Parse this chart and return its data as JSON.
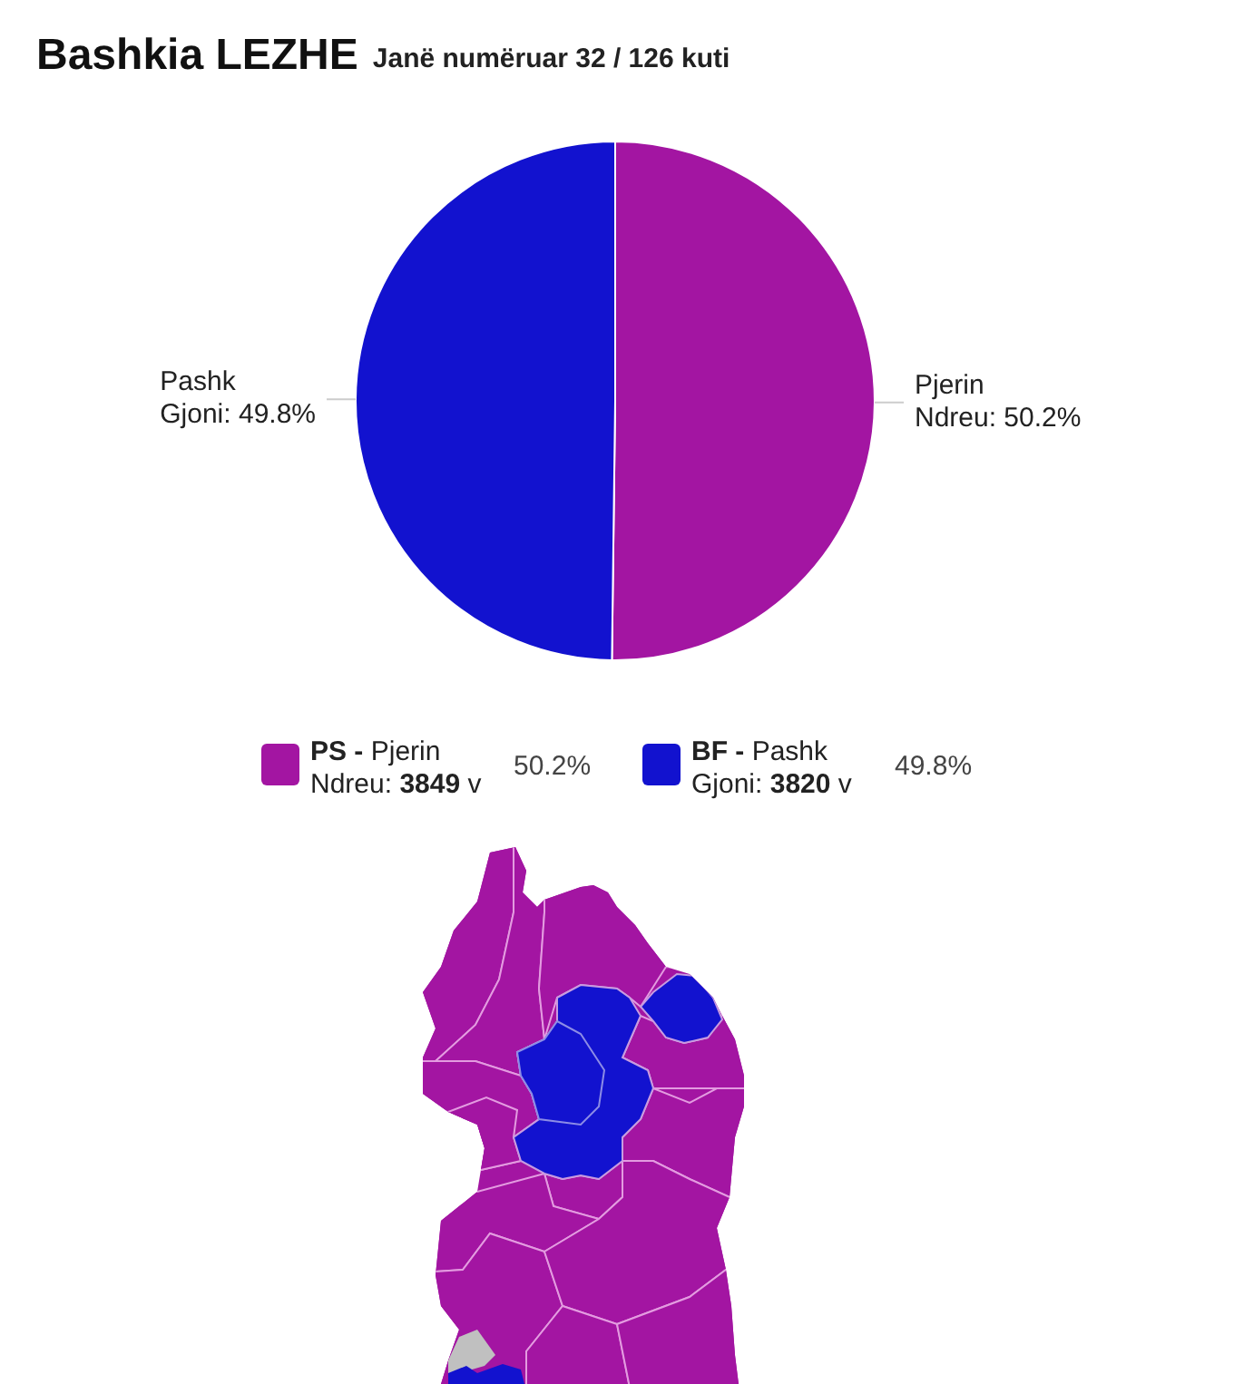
{
  "chart_data": [
    {
      "type": "pie",
      "title": "Bashkia LEZHE",
      "subtitle": "Janë numëruar 32 / 126 kuti",
      "categories": [
        "Pjerin Ndreu",
        "Pashk Gjoni"
      ],
      "values": [
        50.2,
        49.8
      ],
      "value_labels": [
        "50.2%",
        "49.8%"
      ],
      "colors": [
        "#a315a2",
        "#1212cf"
      ]
    },
    {
      "type": "other",
      "annotations": [
        "PS - Pjerin Ndreu: 3849 v 50.2%",
        "BF - Pashk Gjoni: 3820 v 49.8%"
      ]
    }
  ]
}
